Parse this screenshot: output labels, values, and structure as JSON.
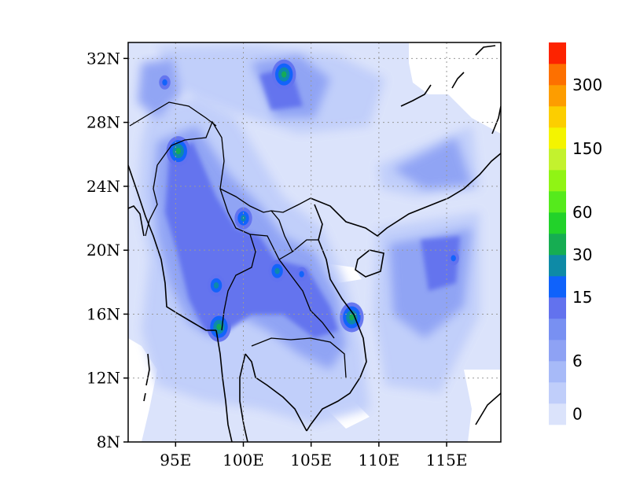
{
  "map": {
    "lon_range": [
      91.5,
      119.0
    ],
    "lat_range": [
      8,
      33
    ],
    "lat_ticks": [
      {
        "lat": 8,
        "label": "8N"
      },
      {
        "lat": 12,
        "label": "12N"
      },
      {
        "lat": 16,
        "label": "16N"
      },
      {
        "lat": 20,
        "label": "20N"
      },
      {
        "lat": 24,
        "label": "24N"
      },
      {
        "lat": 28,
        "label": "28N"
      },
      {
        "lat": 32,
        "label": "32N"
      }
    ],
    "lon_ticks": [
      {
        "lon": 95,
        "label": "95E"
      },
      {
        "lon": 100,
        "label": "100E"
      },
      {
        "lon": 105,
        "label": "105E"
      },
      {
        "lon": 110,
        "label": "110E"
      },
      {
        "lon": 115,
        "label": "115E"
      }
    ],
    "grid": true,
    "field": "precipitation-like contour field over Southeast Asia",
    "hotspots": [
      {
        "lon": 95.2,
        "lat": 26.2,
        "level": 8
      },
      {
        "lon": 98.2,
        "lat": 15.2,
        "level": 8
      },
      {
        "lon": 98.0,
        "lat": 17.8,
        "level": 7
      },
      {
        "lon": 103.0,
        "lat": 31.0,
        "level": 8
      },
      {
        "lon": 108.0,
        "lat": 15.8,
        "level": 8
      },
      {
        "lon": 100.0,
        "lat": 22.0,
        "level": 7
      },
      {
        "lon": 102.5,
        "lat": 18.7,
        "level": 7
      },
      {
        "lon": 104.3,
        "lat": 18.5,
        "level": 6
      },
      {
        "lon": 94.2,
        "lat": 30.5,
        "level": 6
      },
      {
        "lon": 115.5,
        "lat": 19.5,
        "level": 6
      }
    ]
  },
  "colorbar": {
    "colors": [
      "#dbe3fb",
      "#c0cefa",
      "#a7baf8",
      "#8ea2f4",
      "#7890f2",
      "#6272ee",
      "#0f62fb",
      "#0e8aa6",
      "#16ad52",
      "#22d22a",
      "#55ea1c",
      "#90f414",
      "#c3f22e",
      "#f4f400",
      "#fcce00",
      "#fd9d00",
      "#fd7000",
      "#fd2300"
    ],
    "labels": [
      {
        "level": 0,
        "text": "0"
      },
      {
        "level": 3,
        "text": "6"
      },
      {
        "level": 6,
        "text": "15"
      },
      {
        "level": 8,
        "text": "30"
      },
      {
        "level": 10,
        "text": "60"
      },
      {
        "level": 13,
        "text": "150"
      },
      {
        "level": 16,
        "text": "300"
      }
    ]
  }
}
